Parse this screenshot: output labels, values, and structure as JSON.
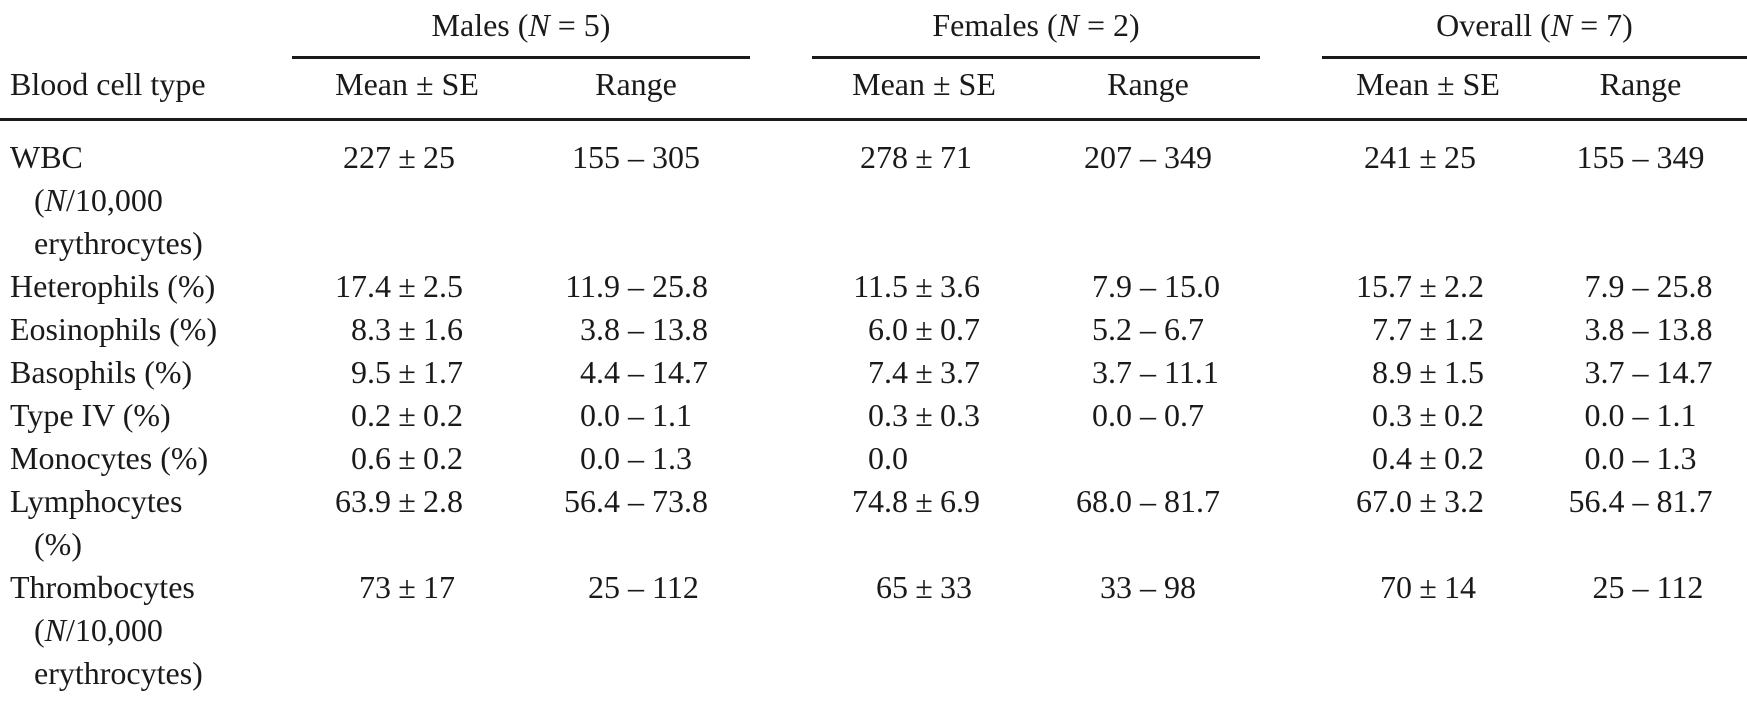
{
  "meta": {
    "background_color": "#ffffff",
    "text_color": "#1a1a1a",
    "rule_color": "#1a1a1a"
  },
  "table": {
    "row_header_label": "Blood cell type",
    "groups": [
      {
        "title": "Males (N = 5)",
        "subcolumns": [
          "Mean ± SE",
          "Range"
        ]
      },
      {
        "title": "Females (N = 2)",
        "subcolumns": [
          "Mean ± SE",
          "Range"
        ]
      },
      {
        "title": "Overall (N = 7)",
        "subcolumns": [
          "Mean ± SE",
          "Range"
        ]
      }
    ],
    "rows": [
      {
        "label": "WBC (N/10,000 erythrocytes)",
        "label_lines": [
          "WBC",
          "(N/10,000",
          "erythrocytes)"
        ],
        "cells": [
          "227 ± 25",
          "155 – 305",
          "278 ± 71",
          "207 – 349",
          "241 ± 25",
          "155 – 349"
        ]
      },
      {
        "label": "Heterophils (%)",
        "label_lines": [
          "Heterophils (%)"
        ],
        "cells": [
          "17.4 ± 2.5",
          "11.9 – 25.8",
          "11.5 ± 3.6",
          "7.9 – 15.0",
          "15.7 ± 2.2",
          "7.9 – 25.8"
        ]
      },
      {
        "label": "Eosinophils (%)",
        "label_lines": [
          "Eosinophils (%)"
        ],
        "cells": [
          "8.3 ± 1.6",
          "3.8 – 13.8",
          "6.0 ± 0.7",
          "5.2 – 6.7",
          "7.7 ± 1.2",
          "3.8 – 13.8"
        ]
      },
      {
        "label": "Basophils (%)",
        "label_lines": [
          "Basophils (%)"
        ],
        "cells": [
          "9.5 ± 1.7",
          "4.4 – 14.7",
          "7.4 ± 3.7",
          "3.7 – 11.1",
          "8.9 ± 1.5",
          "3.7 – 14.7"
        ]
      },
      {
        "label": "Type IV (%)",
        "label_lines": [
          "Type IV (%)"
        ],
        "cells": [
          "0.2 ± 0.2",
          "0.0 – 1.1",
          "0.3 ± 0.3",
          "0.0 – 0.7",
          "0.3 ± 0.2",
          "0.0 – 1.1"
        ]
      },
      {
        "label": "Monocytes (%)",
        "label_lines": [
          "Monocytes (%)"
        ],
        "cells": [
          "0.6 ± 0.2",
          "0.0 – 1.3",
          "0.0",
          "",
          "0.4 ± 0.2",
          "0.0 – 1.3"
        ]
      },
      {
        "label": "Lymphocytes (%)",
        "label_lines": [
          "Lymphocytes",
          "(%)"
        ],
        "cells": [
          "63.9 ± 2.8",
          "56.4 – 73.8",
          "74.8 ± 6.9",
          "68.0 – 81.7",
          "67.0 ± 3.2",
          "56.4 – 81.7"
        ]
      },
      {
        "label": "Thrombocytes (N/10,000 erythrocytes)",
        "label_lines": [
          "Thrombocytes",
          "(N/10,000",
          "erythrocytes)"
        ],
        "cells": [
          "73 ± 17",
          "25 – 112",
          "65 ± 33",
          "33 – 98",
          "70 ± 14",
          "25 – 112"
        ]
      }
    ]
  }
}
